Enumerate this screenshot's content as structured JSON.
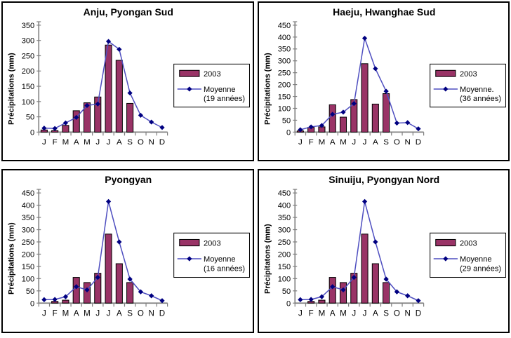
{
  "page": {
    "background": "#ffffff"
  },
  "colors": {
    "bar_fill": "#993366",
    "bar_stroke": "#000000",
    "line": "#4f4fc0",
    "marker": "#000080",
    "axis": "#808080",
    "text": "#000000",
    "panel_border": "#000000",
    "legend_border": "#000000",
    "legend_bg": "#ffffff"
  },
  "chart_data": [
    {
      "type": "bar+line",
      "title": "Anju, Pyongan Sud",
      "ylabel": "Précipitations (mm)",
      "ylim": [
        0,
        350
      ],
      "yticks": [
        0,
        50,
        100,
        150,
        200,
        250,
        300,
        350
      ],
      "grid": false,
      "legend_position": "right-overlay",
      "categories": [
        "J",
        "F",
        "M",
        "A",
        "M",
        "J",
        "J",
        "A",
        "S",
        "O",
        "N",
        "D"
      ],
      "series": [
        {
          "name": "2003",
          "type": "bar",
          "values": [
            7,
            5,
            22,
            70,
            96,
            115,
            285,
            235,
            94,
            0,
            0,
            0
          ]
        },
        {
          "name": "Moyenne (19 années)",
          "type": "line",
          "values": [
            13,
            12,
            30,
            48,
            87,
            92,
            297,
            271,
            128,
            55,
            33,
            15
          ]
        }
      ],
      "legend": {
        "bar_label": "2003",
        "line_label_lines": [
          "Moyenne",
          "(19 années)"
        ]
      }
    },
    {
      "type": "bar+line",
      "title": "Haeju, Hwanghae Sud",
      "ylabel": "Précipitations (mm)",
      "ylim": [
        0,
        450
      ],
      "yticks": [
        0,
        50,
        100,
        150,
        200,
        250,
        300,
        350,
        400,
        450
      ],
      "grid": false,
      "legend_position": "right-overlay",
      "categories": [
        "J",
        "F",
        "M",
        "A",
        "M",
        "J",
        "J",
        "A",
        "S",
        "O",
        "N",
        "D"
      ],
      "series": [
        {
          "name": "2003",
          "type": "bar",
          "values": [
            5,
            20,
            22,
            115,
            63,
            137,
            288,
            118,
            162,
            0,
            0,
            0
          ]
        },
        {
          "name": "Moyenne. (36 années)",
          "type": "line",
          "values": [
            10,
            22,
            28,
            75,
            84,
            120,
            395,
            267,
            172,
            38,
            40,
            14
          ]
        }
      ],
      "legend": {
        "bar_label": "2003",
        "line_label_lines": [
          "Moyenne.",
          "(36 années)"
        ]
      }
    },
    {
      "type": "bar+line",
      "title": "Pyongyan",
      "ylabel": "Précipitations (mm)",
      "ylim": [
        0,
        450
      ],
      "yticks": [
        0,
        50,
        100,
        150,
        200,
        250,
        300,
        350,
        400,
        450
      ],
      "grid": false,
      "legend_position": "right-overlay",
      "categories": [
        "J",
        "F",
        "M",
        "A",
        "M",
        "J",
        "J",
        "A",
        "S",
        "O",
        "N",
        "D"
      ],
      "series": [
        {
          "name": "2003",
          "type": "bar",
          "values": [
            0,
            7,
            12,
            105,
            84,
            122,
            282,
            161,
            84,
            0,
            0,
            0
          ]
        },
        {
          "name": "Moyenne (16 années)",
          "type": "line",
          "values": [
            14,
            15,
            26,
            67,
            54,
            105,
            415,
            250,
            98,
            46,
            30,
            10
          ]
        }
      ],
      "legend": {
        "bar_label": "2003",
        "line_label_lines": [
          "Moyenne",
          "(16 années)"
        ]
      }
    },
    {
      "type": "bar+line",
      "title": "Sinuiju, Pyongyan Nord",
      "ylabel": "Précipitatons (mm)",
      "ylim": [
        0,
        450
      ],
      "yticks": [
        0,
        50,
        100,
        150,
        200,
        250,
        300,
        350,
        400,
        450
      ],
      "grid": false,
      "legend_position": "right-overlay",
      "categories": [
        "J",
        "F",
        "M",
        "A",
        "M",
        "J",
        "J",
        "A",
        "S",
        "O",
        "N",
        "D"
      ],
      "series": [
        {
          "name": "2003",
          "type": "bar",
          "values": [
            0,
            7,
            12,
            105,
            84,
            122,
            282,
            161,
            84,
            0,
            0,
            0
          ]
        },
        {
          "name": "Moyenne (29 années)",
          "type": "line",
          "values": [
            14,
            15,
            26,
            67,
            54,
            105,
            415,
            250,
            98,
            46,
            30,
            10
          ]
        }
      ],
      "legend": {
        "bar_label": "2003",
        "line_label_lines": [
          "Moyenne",
          "(29 années)"
        ]
      }
    }
  ]
}
